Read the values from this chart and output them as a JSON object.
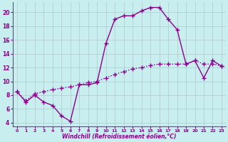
{
  "xlabel": "Windchill (Refroidissement éolien,°C)",
  "bg_color": "#c8eef0",
  "line_color": "#8b008b",
  "grid_color": "#b0c8c8",
  "xlim": [
    -0.5,
    23.5
  ],
  "ylim": [
    3.5,
    21.5
  ],
  "x_ticks": [
    0,
    1,
    2,
    3,
    4,
    5,
    6,
    7,
    8,
    9,
    10,
    11,
    12,
    13,
    14,
    15,
    16,
    17,
    18,
    19,
    20,
    21,
    22,
    23
  ],
  "y_ticks": [
    4,
    6,
    8,
    10,
    12,
    14,
    16,
    18,
    20
  ],
  "curve1_x": [
    0,
    1,
    2,
    3,
    4,
    5,
    6,
    7,
    8,
    9,
    10,
    11,
    12,
    13,
    14,
    15,
    16,
    17,
    18,
    19,
    20,
    21,
    22,
    23
  ],
  "curve1_y": [
    8.5,
    7.0,
    8.0,
    7.0,
    6.5,
    5.0,
    4.2,
    9.5,
    9.5,
    9.8,
    15.5,
    19.0,
    19.5,
    19.5,
    20.2,
    20.7,
    20.7,
    19.0,
    17.5,
    12.5,
    13.0,
    10.5,
    13.0,
    12.2
  ],
  "curve2_x": [
    0,
    1,
    2,
    3,
    4,
    5,
    6,
    7,
    8,
    9,
    10,
    11,
    12,
    13,
    14,
    15,
    16,
    17,
    18,
    19,
    20,
    21,
    22,
    23
  ],
  "curve2_y": [
    8.5,
    7.2,
    8.2,
    8.5,
    8.8,
    9.0,
    9.2,
    9.5,
    9.8,
    10.0,
    10.5,
    11.0,
    11.4,
    11.8,
    12.0,
    12.3,
    12.5,
    12.5,
    12.5,
    12.5,
    13.0,
    12.5,
    12.5,
    12.2
  ],
  "linewidth": 1.0,
  "markersize": 4,
  "marker": "+"
}
